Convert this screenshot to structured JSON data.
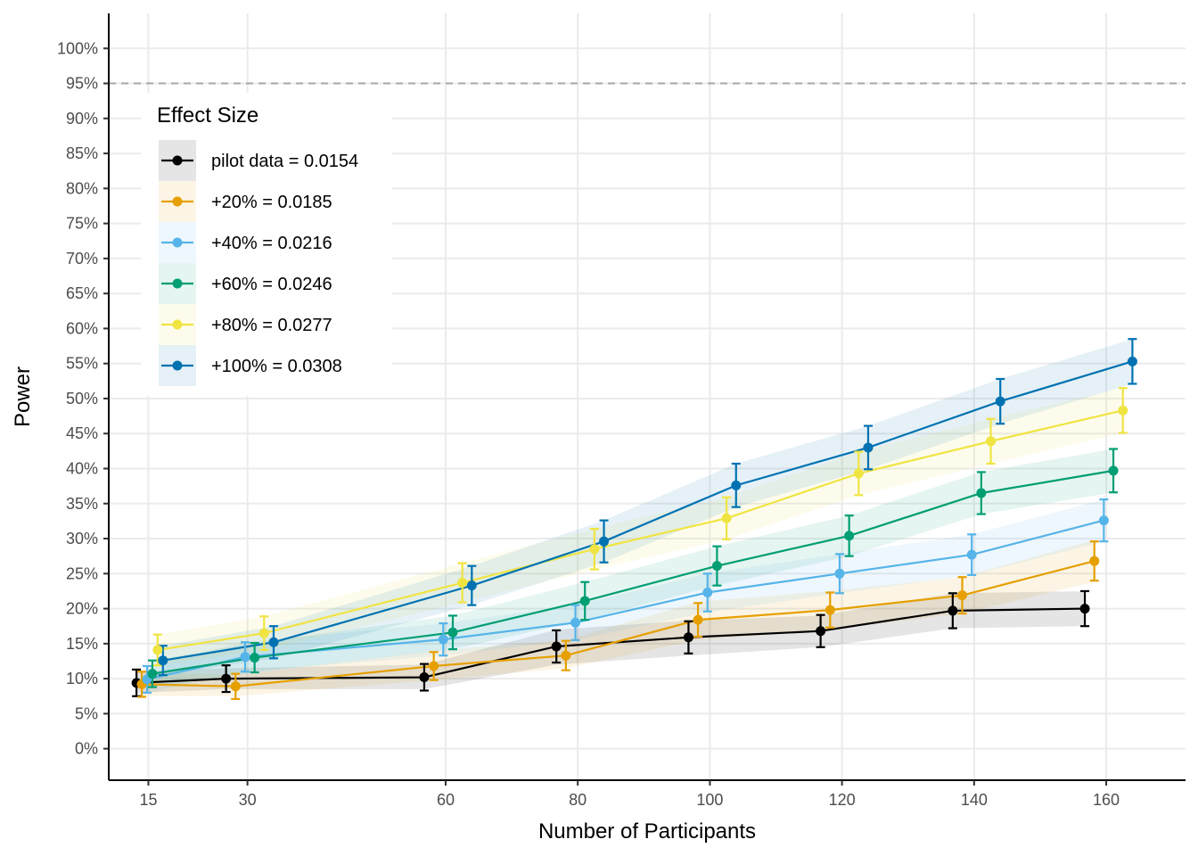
{
  "chart_data": {
    "type": "line",
    "xlabel": "Number of Participants",
    "ylabel": "Power",
    "x_ticks": [
      15,
      30,
      60,
      80,
      100,
      120,
      140,
      160
    ],
    "x_tick_labels": [
      "15",
      "30",
      "60",
      "80",
      "100",
      "120",
      "140",
      "160"
    ],
    "y_ticks": [
      0,
      5,
      10,
      15,
      20,
      25,
      30,
      35,
      40,
      45,
      50,
      55,
      60,
      65,
      70,
      75,
      80,
      85,
      90,
      95,
      100
    ],
    "y_tick_labels": [
      "0%",
      "5%",
      "10%",
      "15%",
      "20%",
      "25%",
      "30%",
      "35%",
      "40%",
      "45%",
      "50%",
      "55%",
      "60%",
      "65%",
      "70%",
      "75%",
      "80%",
      "85%",
      "90%",
      "95%",
      "100%"
    ],
    "xlim": [
      9,
      172
    ],
    "ylim": [
      -4.5,
      105
    ],
    "reference_line": {
      "y": 95,
      "style": "dashed",
      "color": "#a6a6a6"
    },
    "grid": true,
    "legend": {
      "title": "Effect Size",
      "placement": "top-left"
    },
    "x": [
      15,
      30,
      60,
      80,
      100,
      120,
      140,
      160
    ],
    "series": [
      {
        "name": "pilot data = 0.0154",
        "color": "#000000",
        "values": [
          9.4,
          10.0,
          10.2,
          14.6,
          15.9,
          16.8,
          19.7,
          20.0
        ],
        "error": [
          1.9,
          1.9,
          1.9,
          2.3,
          2.3,
          2.3,
          2.5,
          2.5
        ],
        "band_low": [
          8.0,
          8.5,
          8.5,
          12.0,
          13.3,
          14.5,
          17.2,
          17.5
        ],
        "band_high": [
          11.0,
          11.5,
          12.0,
          17.0,
          18.3,
          19.0,
          22.2,
          22.5
        ]
      },
      {
        "name": "+20% = 0.0185",
        "color": "#e69f00",
        "values": [
          9.2,
          8.9,
          11.8,
          13.3,
          18.4,
          19.8,
          21.9,
          26.8
        ],
        "error": [
          1.8,
          1.8,
          2.0,
          2.1,
          2.4,
          2.5,
          2.6,
          2.8
        ],
        "band_low": [
          7.5,
          7.5,
          9.8,
          11.5,
          15.5,
          17.0,
          19.3,
          23.8
        ],
        "band_high": [
          11.0,
          10.5,
          14.0,
          15.5,
          21.0,
          22.5,
          24.5,
          29.8
        ]
      },
      {
        "name": "+40% = 0.0216",
        "color": "#56b4e9",
        "values": [
          9.9,
          13.1,
          15.6,
          18.0,
          22.3,
          25.0,
          27.7,
          32.6
        ],
        "error": [
          1.9,
          2.1,
          2.3,
          2.5,
          2.7,
          2.8,
          2.9,
          3.0
        ],
        "band_low": [
          8.0,
          11.0,
          13.3,
          15.5,
          19.5,
          22.2,
          24.8,
          29.6
        ],
        "band_high": [
          11.8,
          15.2,
          17.9,
          20.5,
          25.0,
          27.8,
          30.6,
          35.6
        ]
      },
      {
        "name": "+60% = 0.0246",
        "color": "#009e73",
        "values": [
          10.7,
          13.0,
          16.6,
          21.1,
          26.1,
          30.4,
          36.5,
          39.7
        ],
        "error": [
          1.9,
          2.1,
          2.4,
          2.7,
          2.8,
          2.9,
          3.0,
          3.1
        ],
        "band_low": [
          8.8,
          10.9,
          14.2,
          18.4,
          23.3,
          27.5,
          33.5,
          36.6
        ],
        "band_high": [
          12.6,
          15.1,
          19.0,
          23.8,
          28.9,
          33.3,
          39.5,
          42.8
        ]
      },
      {
        "name": "+80% = 0.0277",
        "color": "#f0e442",
        "values": [
          14.1,
          16.5,
          23.7,
          28.5,
          32.9,
          39.3,
          43.9,
          48.3
        ],
        "error": [
          2.2,
          2.4,
          2.8,
          2.9,
          3.0,
          3.1,
          3.2,
          3.2
        ],
        "band_low": [
          11.9,
          14.1,
          20.9,
          25.6,
          29.9,
          36.2,
          40.7,
          45.1
        ],
        "band_high": [
          16.3,
          18.9,
          26.5,
          31.4,
          35.9,
          42.4,
          47.1,
          51.5
        ]
      },
      {
        "name": "+100% = 0.0308",
        "color": "#0072b2",
        "values": [
          12.6,
          15.2,
          23.3,
          29.6,
          37.6,
          43.0,
          49.6,
          55.3
        ],
        "error": [
          2.1,
          2.3,
          2.8,
          3.0,
          3.1,
          3.1,
          3.2,
          3.2
        ],
        "band_low": [
          10.5,
          12.9,
          20.5,
          26.6,
          34.5,
          39.9,
          46.4,
          52.1
        ],
        "band_high": [
          14.7,
          17.5,
          26.1,
          32.6,
          40.7,
          46.1,
          52.8,
          58.5
        ]
      }
    ]
  }
}
